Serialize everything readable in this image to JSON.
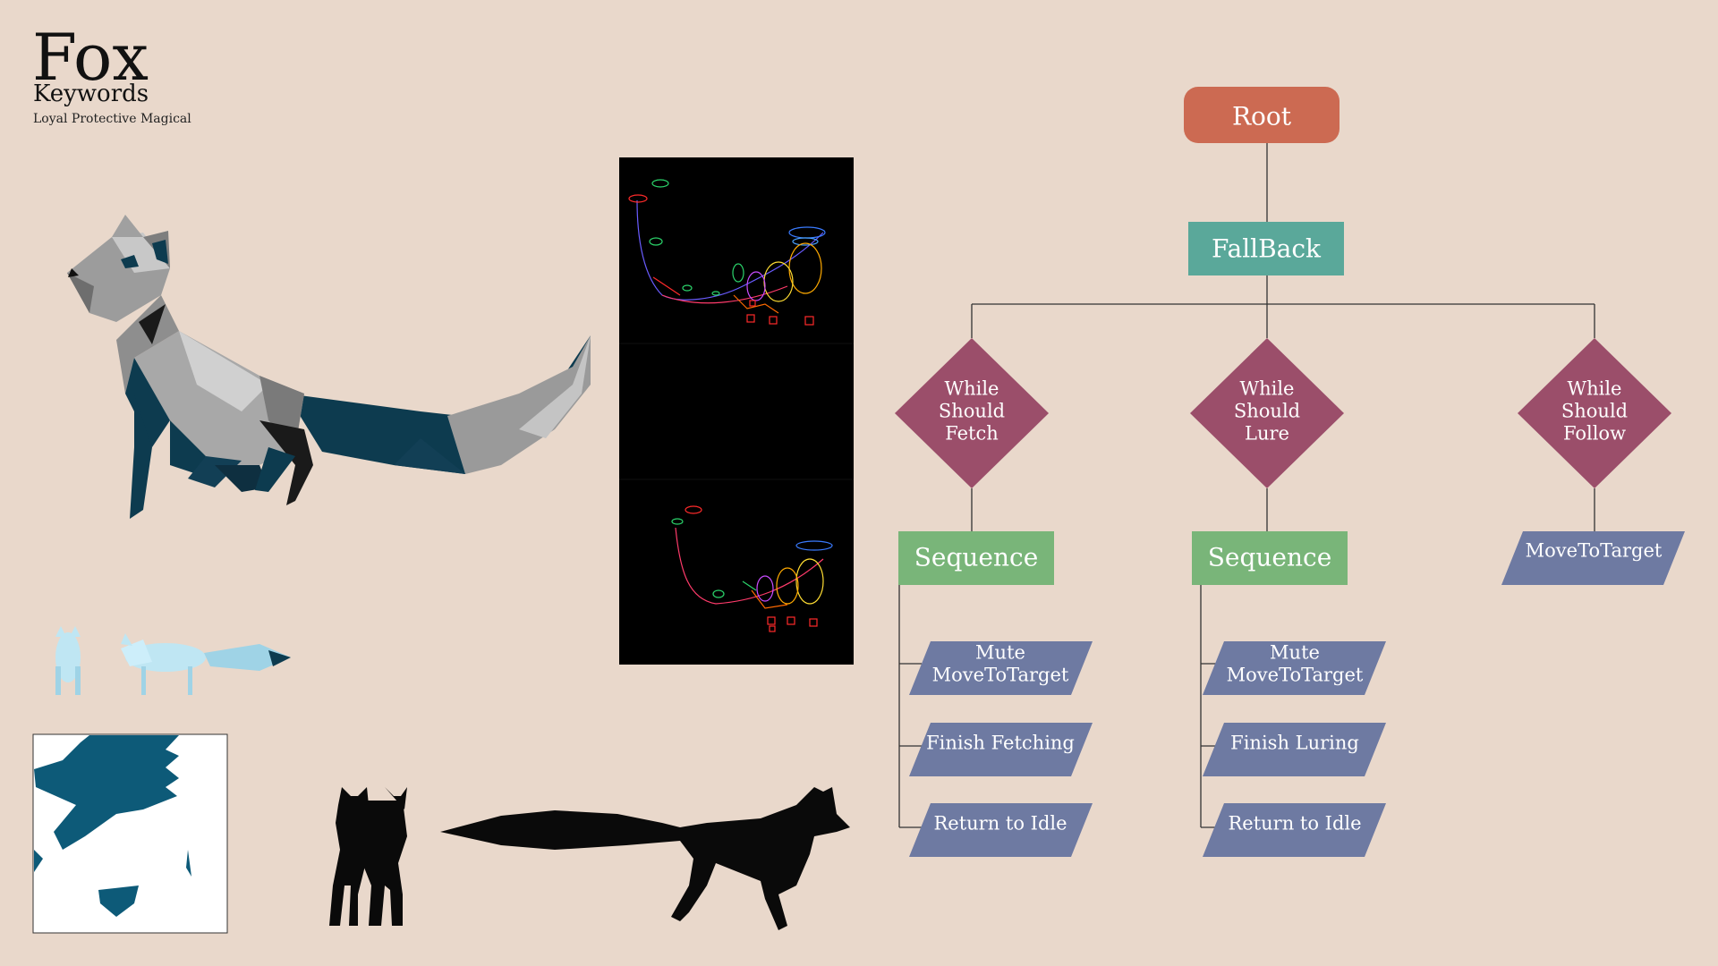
{
  "header": {
    "title": "Fox",
    "subtitle": "Keywords",
    "keywords": "Loyal Protective Magical"
  },
  "tree": {
    "root": "Root",
    "fallback": "FallBack",
    "branches": [
      {
        "condition": [
          "While",
          "Should",
          "Fetch"
        ],
        "sequence": "Sequence",
        "actions": [
          [
            "Mute",
            "MoveToTarget"
          ],
          [
            "Finish Fetching"
          ],
          [
            "Return to Idle"
          ]
        ]
      },
      {
        "condition": [
          "While",
          "Should",
          "Lure"
        ],
        "sequence": "Sequence",
        "actions": [
          [
            "Mute",
            "MoveToTarget"
          ],
          [
            "Finish Luring"
          ],
          [
            "Return to Idle"
          ]
        ]
      },
      {
        "condition": [
          "While",
          "Should",
          "Follow"
        ],
        "action": "MoveToTarget"
      }
    ]
  },
  "colors": {
    "background": "#e9d8cb",
    "root": "#cc6a52",
    "fallback": "#5aa89a",
    "condition": "#9b4e6a",
    "sequence": "#79b579",
    "action": "#6e7aa2",
    "fox_dark": "#0d3b4f",
    "fox_grey": "#8c8c8c",
    "fox_light": "#bfe6f3"
  }
}
